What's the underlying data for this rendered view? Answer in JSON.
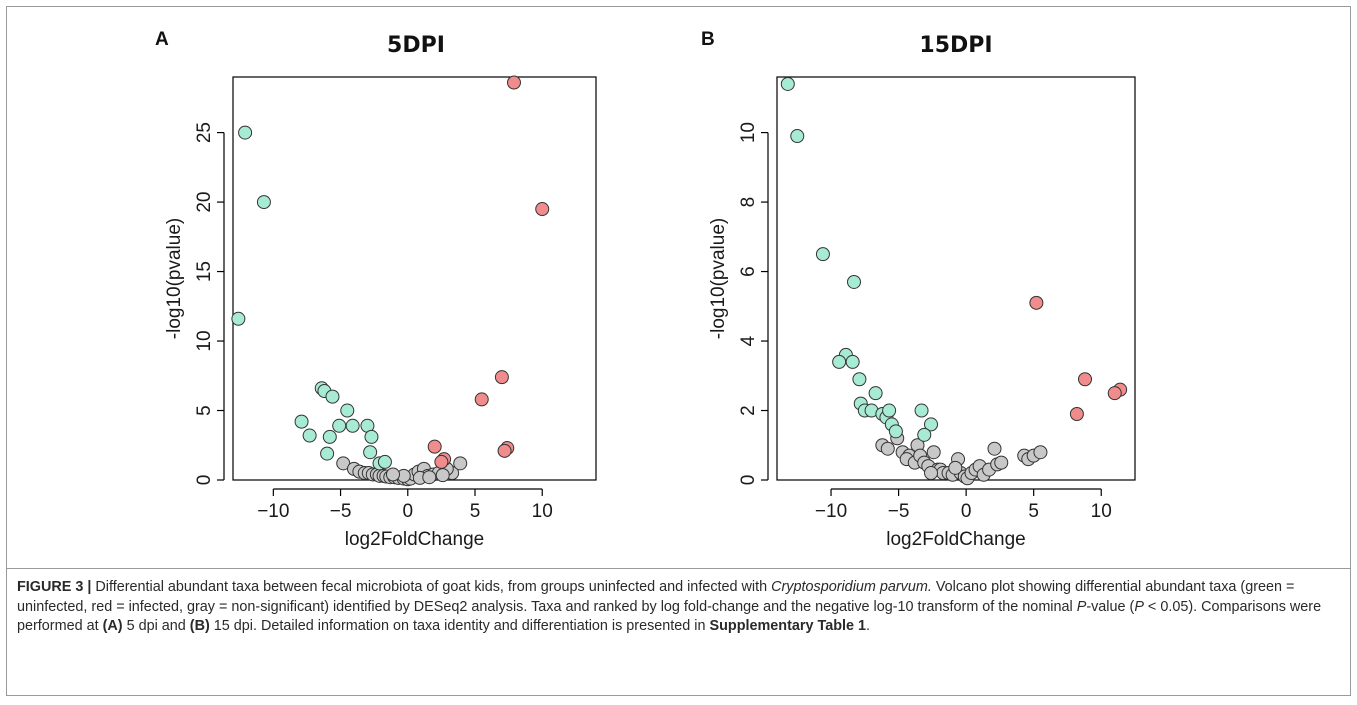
{
  "figure": {
    "caption": {
      "label": "FIGURE 3 |",
      "part1": " Differential abundant taxa between fecal microbiota of goat kids, from groups uninfected and infected with ",
      "species": "Cryptosporidium parvum.",
      "part2": " Volcano plot showing differential abundant taxa (green = uninfected, red = infected, gray = non-significant) identified by DESeq2 analysis. Taxa and ranked by log fold-change and the negative log-10 transform of the nominal ",
      "p_italic": "P",
      "part3": "-value (",
      "p_italic2": "P",
      "part4": " < 0.05). Comparisons were performed at ",
      "ref_a": "(A)",
      "part5": " 5 dpi and ",
      "ref_b": "(B)",
      "part6": " 15 dpi. Detailed information on taxa identity and differentiation is presented in ",
      "supp": "Supplementary Table 1",
      "part7": "."
    }
  },
  "colors": {
    "uninfected": "#a8ebd4",
    "infected": "#f08c8c",
    "nonsignificant": "#c8c8c8",
    "edge": "#333333"
  },
  "chart_data": [
    {
      "type": "scatter",
      "panel": "A",
      "title": "5DPI",
      "xlabel": "log2FoldChange",
      "ylabel": "-log10(pvalue)",
      "xlim": [
        -13,
        14
      ],
      "ylim": [
        0,
        29
      ],
      "xticks": [
        -10,
        -5,
        0,
        5,
        10
      ],
      "yticks": [
        0,
        5,
        10,
        15,
        20,
        25
      ],
      "grid": false,
      "series": [
        {
          "key": "uninfected",
          "points": [
            [
              -12.1,
              25.0
            ],
            [
              -10.7,
              20.0
            ],
            [
              -12.6,
              11.6
            ],
            [
              -6.4,
              6.6
            ],
            [
              -6.2,
              6.4
            ],
            [
              -5.6,
              6.0
            ],
            [
              -4.5,
              5.0
            ],
            [
              -4.1,
              3.9
            ],
            [
              -5.1,
              3.9
            ],
            [
              -3.0,
              3.9
            ],
            [
              -2.7,
              3.1
            ],
            [
              -5.8,
              3.1
            ],
            [
              -7.3,
              3.2
            ],
            [
              -7.9,
              4.2
            ],
            [
              -6.0,
              1.9
            ],
            [
              -2.8,
              2.0
            ],
            [
              -2.1,
              1.2
            ],
            [
              -1.7,
              1.3
            ]
          ]
        },
        {
          "key": "infected",
          "points": [
            [
              7.9,
              28.6
            ],
            [
              10.0,
              19.5
            ],
            [
              7.0,
              7.4
            ],
            [
              5.5,
              5.8
            ],
            [
              7.4,
              2.3
            ],
            [
              7.2,
              2.1
            ],
            [
              2.0,
              2.4
            ],
            [
              2.7,
              1.5
            ],
            [
              2.5,
              1.3
            ]
          ]
        },
        {
          "key": "nonsignificant",
          "points": [
            [
              -4.8,
              1.2
            ],
            [
              -4.0,
              0.8
            ],
            [
              -3.6,
              0.6
            ],
            [
              -3.2,
              0.5
            ],
            [
              -2.9,
              0.5
            ],
            [
              -2.6,
              0.4
            ],
            [
              -2.3,
              0.4
            ],
            [
              -2.1,
              0.3
            ],
            [
              -1.8,
              0.3
            ],
            [
              -1.6,
              0.25
            ],
            [
              -1.3,
              0.2
            ],
            [
              -1.0,
              0.2
            ],
            [
              -0.7,
              0.15
            ],
            [
              -0.3,
              0.1
            ],
            [
              0.0,
              0.05
            ],
            [
              0.2,
              0.1
            ],
            [
              0.5,
              0.4
            ],
            [
              0.8,
              0.6
            ],
            [
              1.2,
              0.8
            ],
            [
              1.5,
              0.3
            ],
            [
              0.9,
              0.15
            ],
            [
              1.9,
              0.4
            ],
            [
              2.3,
              0.5
            ],
            [
              3.3,
              0.5
            ],
            [
              2.9,
              0.8
            ],
            [
              3.9,
              1.2
            ],
            [
              -0.3,
              0.3
            ],
            [
              -1.1,
              0.4
            ],
            [
              2.6,
              0.35
            ],
            [
              1.6,
              0.2
            ]
          ]
        }
      ]
    },
    {
      "type": "scatter",
      "panel": "B",
      "title": "15DPI",
      "xlabel": "log2FoldChange",
      "ylabel": "-log10(pvalue)",
      "xlim": [
        -14,
        12.5
      ],
      "ylim": [
        0,
        11.6
      ],
      "xticks": [
        -10,
        -5,
        0,
        5,
        10
      ],
      "yticks": [
        0,
        2,
        4,
        6,
        8,
        10
      ],
      "grid": false,
      "series": [
        {
          "key": "uninfected",
          "points": [
            [
              -13.2,
              11.4
            ],
            [
              -12.5,
              9.9
            ],
            [
              -10.6,
              6.5
            ],
            [
              -8.3,
              5.7
            ],
            [
              -8.9,
              3.6
            ],
            [
              -9.4,
              3.4
            ],
            [
              -8.4,
              3.4
            ],
            [
              -7.9,
              2.9
            ],
            [
              -7.8,
              2.2
            ],
            [
              -7.5,
              2.0
            ],
            [
              -7.0,
              2.0
            ],
            [
              -6.7,
              2.5
            ],
            [
              -6.2,
              1.9
            ],
            [
              -5.9,
              1.8
            ],
            [
              -5.7,
              2.0
            ],
            [
              -5.5,
              1.6
            ],
            [
              -5.2,
              1.4
            ],
            [
              -3.3,
              2.0
            ],
            [
              -2.6,
              1.6
            ],
            [
              -3.1,
              1.3
            ]
          ]
        },
        {
          "key": "infected",
          "points": [
            [
              5.2,
              5.1
            ],
            [
              8.8,
              2.9
            ],
            [
              11.4,
              2.6
            ],
            [
              11.0,
              2.5
            ],
            [
              8.2,
              1.9
            ]
          ]
        },
        {
          "key": "nonsignificant",
          "points": [
            [
              -6.2,
              1.0
            ],
            [
              -5.8,
              0.9
            ],
            [
              -5.1,
              1.2
            ],
            [
              -4.7,
              0.8
            ],
            [
              -4.2,
              0.7
            ],
            [
              -4.4,
              0.6
            ],
            [
              -3.8,
              0.5
            ],
            [
              -3.6,
              1.0
            ],
            [
              -3.4,
              0.7
            ],
            [
              -3.1,
              0.5
            ],
            [
              -2.8,
              0.4
            ],
            [
              -2.4,
              0.8
            ],
            [
              -2.1,
              0.3
            ],
            [
              -1.9,
              0.3
            ],
            [
              -1.7,
              0.2
            ],
            [
              -1.3,
              0.2
            ],
            [
              -1.0,
              0.15
            ],
            [
              -0.6,
              0.6
            ],
            [
              -0.4,
              0.2
            ],
            [
              -0.1,
              0.1
            ],
            [
              0.1,
              0.05
            ],
            [
              0.4,
              0.2
            ],
            [
              0.7,
              0.3
            ],
            [
              1.0,
              0.4
            ],
            [
              1.3,
              0.15
            ],
            [
              1.7,
              0.3
            ],
            [
              2.1,
              0.9
            ],
            [
              2.3,
              0.45
            ],
            [
              2.6,
              0.5
            ],
            [
              4.3,
              0.7
            ],
            [
              4.6,
              0.6
            ],
            [
              5.0,
              0.7
            ],
            [
              5.5,
              0.8
            ],
            [
              -2.6,
              0.2
            ],
            [
              -0.8,
              0.35
            ]
          ]
        }
      ]
    }
  ]
}
